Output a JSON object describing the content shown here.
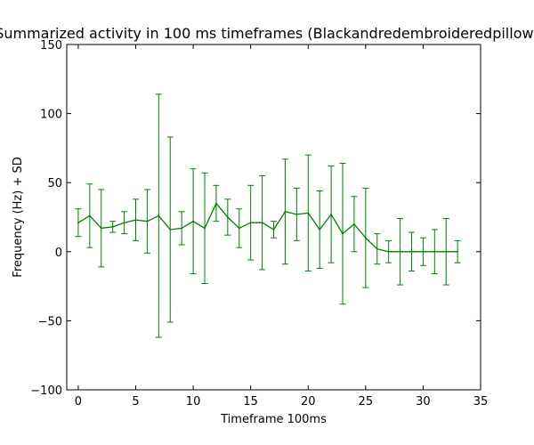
{
  "chart_data": {
    "type": "line",
    "title": "Summarized activity in 100 ms timeframes (Blackandredembroideredpillow)",
    "xlabel": "Timeframe 100ms",
    "ylabel": "Frequency (Hz) + SD",
    "xlim": [
      -1,
      35
    ],
    "ylim": [
      -100,
      150
    ],
    "xticks": [
      0,
      5,
      10,
      15,
      20,
      25,
      30,
      35
    ],
    "yticks": [
      -100,
      -50,
      0,
      50,
      100,
      150
    ],
    "ytick_labels": [
      "−100",
      "−50",
      "0",
      "50",
      "100",
      "150"
    ],
    "grid": false,
    "legend": "none",
    "series": [
      {
        "color": "#008000",
        "x": [
          0,
          1,
          2,
          3,
          4,
          5,
          6,
          7,
          8,
          9,
          10,
          11,
          12,
          13,
          14,
          15,
          16,
          17,
          18,
          19,
          20,
          21,
          22,
          23,
          24,
          25,
          26,
          27,
          28,
          29,
          30,
          31,
          32,
          33
        ],
        "y": [
          21,
          26,
          17,
          18,
          21,
          23,
          22,
          26,
          16,
          17,
          22,
          17,
          35,
          25,
          17,
          21,
          21,
          16,
          29,
          27,
          28,
          16,
          27,
          13,
          20,
          10,
          2,
          0,
          0,
          0,
          0,
          0,
          0,
          0
        ],
        "err": [
          10,
          23,
          28,
          4,
          8,
          15,
          23,
          88,
          67,
          12,
          38,
          40,
          13,
          13,
          14,
          27,
          34,
          6,
          38,
          19,
          42,
          28,
          35,
          51,
          20,
          36,
          11,
          8,
          24,
          14,
          10,
          16,
          24,
          8
        ]
      }
    ]
  }
}
